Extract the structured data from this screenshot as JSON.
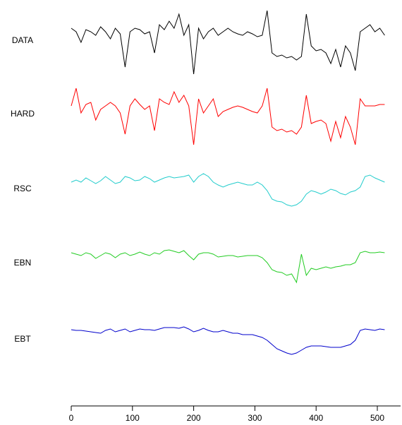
{
  "chart_data": {
    "type": "line",
    "x": [
      0,
      8,
      16,
      24,
      32,
      40,
      48,
      56,
      64,
      72,
      80,
      88,
      96,
      104,
      112,
      120,
      128,
      136,
      144,
      152,
      160,
      168,
      176,
      184,
      192,
      200,
      208,
      216,
      224,
      232,
      240,
      248,
      256,
      264,
      272,
      280,
      288,
      296,
      304,
      312,
      320,
      328,
      336,
      344,
      352,
      360,
      368,
      376,
      384,
      392,
      400,
      408,
      416,
      424,
      432,
      440,
      448,
      456,
      464,
      472,
      480,
      488,
      496,
      504,
      512
    ],
    "xlim": [
      0,
      538
    ],
    "xticks": [
      0,
      100,
      200,
      300,
      400,
      500
    ],
    "ylim": [
      0,
      56
    ],
    "series": [
      {
        "name": "DATA",
        "color": "#000000",
        "values": [
          52,
          51.5,
          50,
          51.8,
          51.5,
          51,
          52.2,
          51.5,
          50.5,
          52,
          51.2,
          46.5,
          51.5,
          52,
          51.8,
          51.2,
          51.5,
          48.5,
          52.5,
          51.8,
          53,
          52,
          54,
          51,
          52.5,
          45.5,
          52,
          50.5,
          51.5,
          52,
          51,
          51.5,
          52,
          51.5,
          51.2,
          51,
          51.5,
          51.2,
          50.8,
          51,
          54.5,
          48.5,
          48,
          48.2,
          47.8,
          48,
          47.5,
          48,
          54,
          49.5,
          48.8,
          49,
          48.5,
          47,
          49,
          46.5,
          49.5,
          48.5,
          46,
          51.5,
          52,
          52.5,
          51.5,
          52,
          51
        ]
      },
      {
        "name": "HARD",
        "color": "#ff0000",
        "values": [
          41,
          43.5,
          40,
          41.2,
          41.5,
          39,
          40.5,
          41,
          41.5,
          41,
          40,
          37,
          41,
          42,
          41.2,
          40.5,
          41,
          37.5,
          42,
          41.5,
          41.2,
          43,
          41.5,
          42.5,
          41,
          35.5,
          42,
          40,
          41,
          42,
          39.5,
          40.2,
          40.5,
          40.8,
          41,
          40.8,
          40.5,
          40.2,
          40,
          41,
          43.5,
          38,
          37.5,
          37.7,
          37.3,
          37.5,
          37,
          38,
          42.5,
          38.5,
          38.8,
          39,
          38.5,
          36,
          38.8,
          36.5,
          39.5,
          38,
          35.5,
          42,
          41,
          41,
          41,
          41.2,
          41.2
        ]
      },
      {
        "name": "RSC",
        "color": "#22cccc",
        "values": [
          30.2,
          30.5,
          30.2,
          30.8,
          30.4,
          30,
          30.4,
          31,
          30.5,
          30,
          30.2,
          31,
          30.8,
          30.4,
          30.5,
          31,
          30.7,
          30.2,
          30.5,
          30.8,
          31,
          30.8,
          30.9,
          31,
          31.2,
          30.2,
          31,
          31.4,
          31,
          30.2,
          29.8,
          29.5,
          29.8,
          30,
          30.2,
          30,
          29.8,
          29.8,
          30.2,
          29.8,
          29,
          27.8,
          27.5,
          27.4,
          27,
          26.8,
          27,
          27.5,
          28.5,
          29,
          28.8,
          28.5,
          28.8,
          29.2,
          29,
          28.6,
          28.4,
          28.8,
          29,
          29.5,
          31,
          31.2,
          30.8,
          30.5,
          30.2
        ]
      },
      {
        "name": "EBN",
        "color": "#22cc22",
        "values": [
          20.2,
          20,
          19.8,
          20.2,
          20,
          19.4,
          19.8,
          20.2,
          20,
          19.5,
          20,
          20.2,
          19.8,
          20,
          20.3,
          20,
          19.8,
          20.2,
          20,
          20.5,
          20.6,
          20.4,
          20.2,
          20.5,
          19.8,
          19.2,
          20,
          20.2,
          20.2,
          20,
          19.6,
          19.7,
          19.8,
          19.8,
          19.6,
          19.7,
          19.8,
          19.8,
          19.8,
          19.5,
          18.8,
          17.8,
          17.5,
          17.4,
          17,
          17.2,
          16,
          20,
          17,
          18,
          17.8,
          18,
          18.2,
          18,
          18.2,
          18.3,
          18.5,
          18.5,
          18.8,
          20.2,
          20.4,
          20.2,
          20.2,
          20.3,
          20.2
        ]
      },
      {
        "name": "EBT",
        "color": "#0000cc",
        "values": [
          9.3,
          9.2,
          9.2,
          9.1,
          9,
          8.9,
          8.8,
          9.2,
          9.4,
          9,
          9.2,
          9.4,
          9,
          9.2,
          9.4,
          9.3,
          9.3,
          9.2,
          9.4,
          9.6,
          9.6,
          9.6,
          9.5,
          9.7,
          9.4,
          9,
          9.2,
          9.5,
          9.2,
          9,
          9,
          9.2,
          9,
          8.8,
          8.8,
          8.6,
          8.6,
          8.6,
          8.4,
          8.2,
          7.8,
          7.2,
          6.6,
          6.3,
          6,
          5.8,
          6,
          6.4,
          6.8,
          7,
          7,
          7,
          6.9,
          6.8,
          6.8,
          6.8,
          7,
          7.2,
          7.8,
          9.2,
          9.4,
          9.3,
          9.2,
          9.4,
          9.3
        ]
      }
    ]
  }
}
